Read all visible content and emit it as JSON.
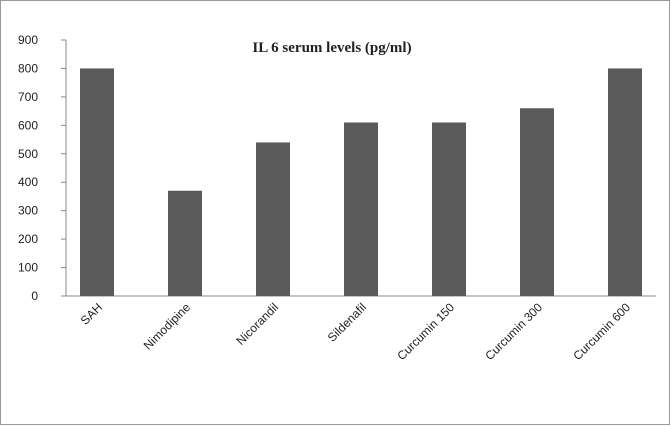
{
  "chart_data": {
    "type": "bar",
    "title": "IL 6 serum levels (pg/ml)",
    "categories": [
      "SAH",
      "Nimodipine",
      "Nicorandil",
      "Sildenafil",
      "Curcumin 150",
      "Curcumin 300",
      "Curcumin 600"
    ],
    "values": [
      800,
      370,
      540,
      610,
      610,
      660,
      800
    ],
    "color": "#5a5a5a",
    "ylim": [
      0,
      900
    ],
    "yticks": [
      0,
      100,
      200,
      300,
      400,
      500,
      600,
      700,
      800,
      900
    ],
    "grid": false
  }
}
